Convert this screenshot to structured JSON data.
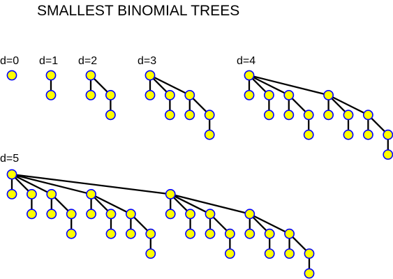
{
  "title": "SMALLEST BINOMIAL TREES",
  "trees": [
    {
      "label": "d=0",
      "degree": 0
    },
    {
      "label": "d=1",
      "degree": 1
    },
    {
      "label": "d=2",
      "degree": 2
    },
    {
      "label": "d=3",
      "degree": 3
    },
    {
      "label": "d=4",
      "degree": 4
    },
    {
      "label": "d=5",
      "degree": 5
    }
  ],
  "colors": {
    "node_fill": "#ffff00",
    "node_stroke": "#0000ff",
    "edge": "#000000",
    "text": "#000000"
  }
}
